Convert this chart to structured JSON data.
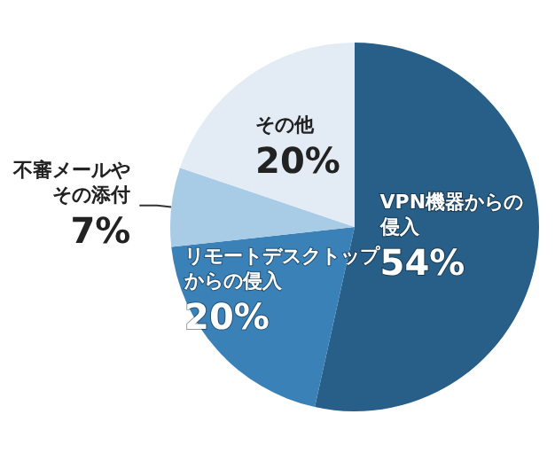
{
  "chart_data": {
    "type": "pie",
    "categories": [
      "VPN機器からの侵入",
      "リモートデスクトップからの侵入",
      "不審メールやその添付",
      "その他"
    ],
    "values": [
      54,
      20,
      7,
      20
    ],
    "value_labels": [
      "54%",
      "20%",
      "7%",
      "20%"
    ],
    "colors": [
      "#285f88",
      "#3a81b8",
      "#a8cbe6",
      "#e3ebf5"
    ],
    "legend": false
  }
}
